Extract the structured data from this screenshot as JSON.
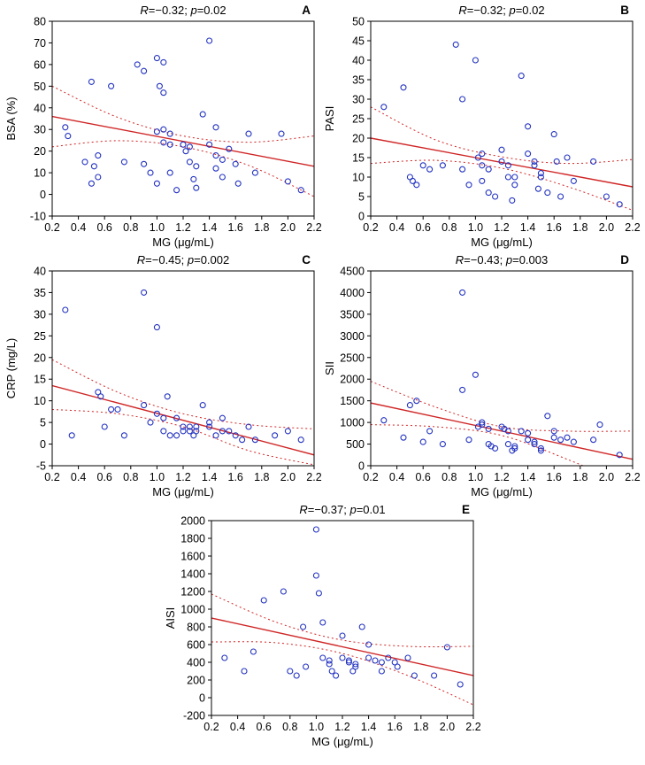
{
  "colors": {
    "point": "#2333c0",
    "fit": "#d02525",
    "ci": "#d02525",
    "frame": "#000000"
  },
  "chart_data": [
    {
      "panel_label": "A",
      "type": "scatter",
      "stats": {
        "r_label": "R",
        "r": "−0.32",
        "p_label": "p",
        "p": "0.02"
      },
      "xlabel": "MG (μg/mL)",
      "ylabel": "BSA (%)",
      "xlim": [
        0.2,
        2.2
      ],
      "ylim": [
        -10,
        80
      ],
      "xticks": [
        "0.2",
        "0.4",
        "0.6",
        "0.8",
        "1.0",
        "1.2",
        "1.4",
        "1.6",
        "1.8",
        "2.0",
        "2.2"
      ],
      "yticks": [
        "-10",
        "0",
        "10",
        "20",
        "30",
        "40",
        "50",
        "60",
        "70",
        "80"
      ],
      "points": [
        [
          0.3,
          31
        ],
        [
          0.32,
          27
        ],
        [
          0.45,
          15
        ],
        [
          0.5,
          52
        ],
        [
          0.52,
          13
        ],
        [
          0.55,
          18
        ],
        [
          0.55,
          8
        ],
        [
          0.5,
          5
        ],
        [
          0.65,
          50
        ],
        [
          0.75,
          15
        ],
        [
          0.85,
          60
        ],
        [
          0.9,
          57
        ],
        [
          0.9,
          14
        ],
        [
          0.95,
          10
        ],
        [
          1.0,
          63
        ],
        [
          1.05,
          61
        ],
        [
          1.02,
          50
        ],
        [
          1.05,
          47
        ],
        [
          1.0,
          29
        ],
        [
          1.05,
          30
        ],
        [
          1.1,
          28
        ],
        [
          1.05,
          24
        ],
        [
          1.1,
          23
        ],
        [
          1.0,
          5
        ],
        [
          1.1,
          10
        ],
        [
          1.15,
          2
        ],
        [
          1.2,
          23
        ],
        [
          1.22,
          20
        ],
        [
          1.25,
          22
        ],
        [
          1.25,
          15
        ],
        [
          1.28,
          7
        ],
        [
          1.3,
          13
        ],
        [
          1.3,
          3
        ],
        [
          1.4,
          71
        ],
        [
          1.35,
          37
        ],
        [
          1.45,
          31
        ],
        [
          1.4,
          23
        ],
        [
          1.45,
          18
        ],
        [
          1.45,
          12
        ],
        [
          1.5,
          16
        ],
        [
          1.5,
          8
        ],
        [
          1.55,
          21
        ],
        [
          1.6,
          14
        ],
        [
          1.62,
          5
        ],
        [
          1.7,
          28
        ],
        [
          1.75,
          10
        ],
        [
          1.95,
          28
        ],
        [
          2.0,
          6
        ],
        [
          2.1,
          2
        ]
      ],
      "fit": [
        [
          0.2,
          36
        ],
        [
          2.2,
          13
        ]
      ],
      "ci_upper": [
        [
          0.2,
          50
        ],
        [
          0.7,
          35.6
        ],
        [
          1.2,
          27
        ],
        [
          1.7,
          24.1
        ],
        [
          2.2,
          27
        ]
      ],
      "ci_lower": [
        [
          0.2,
          22
        ],
        [
          0.7,
          24.8
        ],
        [
          1.2,
          22
        ],
        [
          1.7,
          13.4
        ],
        [
          2.2,
          -1
        ]
      ]
    },
    {
      "panel_label": "B",
      "type": "scatter",
      "stats": {
        "r_label": "R",
        "r": "−0.32",
        "p_label": "p",
        "p": "0.02"
      },
      "xlabel": "MG (μg/mL)",
      "ylabel": "PASI",
      "xlim": [
        0.2,
        2.2
      ],
      "ylim": [
        0,
        50
      ],
      "xticks": [
        "0.2",
        "0.4",
        "0.6",
        "0.8",
        "1.0",
        "1.2",
        "1.4",
        "1.6",
        "1.8",
        "2.0",
        "2.2"
      ],
      "yticks": [
        "0",
        "5",
        "10",
        "15",
        "20",
        "25",
        "30",
        "35",
        "40",
        "45",
        "50"
      ],
      "points": [
        [
          0.3,
          28
        ],
        [
          0.45,
          33
        ],
        [
          0.5,
          10
        ],
        [
          0.52,
          9
        ],
        [
          0.55,
          8
        ],
        [
          0.6,
          13
        ],
        [
          0.65,
          12
        ],
        [
          0.75,
          13
        ],
        [
          0.85,
          44
        ],
        [
          0.9,
          30
        ],
        [
          0.9,
          12
        ],
        [
          0.95,
          8
        ],
        [
          1.0,
          40
        ],
        [
          1.05,
          16
        ],
        [
          1.02,
          15
        ],
        [
          1.05,
          13
        ],
        [
          1.1,
          12
        ],
        [
          1.05,
          9
        ],
        [
          1.1,
          6
        ],
        [
          1.15,
          5
        ],
        [
          1.2,
          17
        ],
        [
          1.2,
          14
        ],
        [
          1.25,
          13
        ],
        [
          1.25,
          10
        ],
        [
          1.3,
          10
        ],
        [
          1.3,
          8
        ],
        [
          1.28,
          4
        ],
        [
          1.35,
          36
        ],
        [
          1.4,
          23
        ],
        [
          1.4,
          16
        ],
        [
          1.45,
          14
        ],
        [
          1.45,
          13
        ],
        [
          1.5,
          11
        ],
        [
          1.5,
          10
        ],
        [
          1.48,
          7
        ],
        [
          1.55,
          6
        ],
        [
          1.6,
          21
        ],
        [
          1.62,
          14
        ],
        [
          1.65,
          5
        ],
        [
          1.7,
          15
        ],
        [
          1.75,
          9
        ],
        [
          1.9,
          14
        ],
        [
          2.0,
          5
        ],
        [
          2.1,
          3
        ]
      ],
      "fit": [
        [
          0.2,
          20
        ],
        [
          2.2,
          7.5
        ]
      ],
      "ci_upper": [
        [
          0.2,
          28
        ],
        [
          0.7,
          19.5
        ],
        [
          1.2,
          15.2
        ],
        [
          1.7,
          13.5
        ],
        [
          2.2,
          14.5
        ]
      ],
      "ci_lower": [
        [
          0.2,
          13.5
        ],
        [
          0.7,
          14.3
        ],
        [
          1.2,
          12.3
        ],
        [
          1.7,
          7.6
        ],
        [
          2.2,
          1.5
        ]
      ]
    },
    {
      "panel_label": "C",
      "type": "scatter",
      "stats": {
        "r_label": "R",
        "r": "−0.45",
        "p_label": "p",
        "p": "0.002"
      },
      "xlabel": "MG (μg/mL)",
      "ylabel": "CRP (mg/L)",
      "xlim": [
        0.2,
        2.2
      ],
      "ylim": [
        -5,
        40
      ],
      "xticks": [
        "0.2",
        "0.4",
        "0.6",
        "0.8",
        "1.0",
        "1.2",
        "1.4",
        "1.6",
        "1.8",
        "2.0",
        "2.2"
      ],
      "yticks": [
        "-5",
        "0",
        "5",
        "10",
        "15",
        "20",
        "25",
        "30",
        "35",
        "40"
      ],
      "points": [
        [
          0.3,
          31
        ],
        [
          0.35,
          2
        ],
        [
          0.55,
          12
        ],
        [
          0.57,
          11
        ],
        [
          0.6,
          4
        ],
        [
          0.65,
          8
        ],
        [
          0.7,
          8
        ],
        [
          0.75,
          2
        ],
        [
          0.9,
          35
        ],
        [
          0.9,
          9
        ],
        [
          0.95,
          5
        ],
        [
          1.0,
          27
        ],
        [
          1.0,
          7
        ],
        [
          1.05,
          6
        ],
        [
          1.05,
          3
        ],
        [
          1.08,
          11
        ],
        [
          1.1,
          2
        ],
        [
          1.15,
          6
        ],
        [
          1.15,
          2
        ],
        [
          1.2,
          4
        ],
        [
          1.2,
          3
        ],
        [
          1.25,
          4
        ],
        [
          1.25,
          3
        ],
        [
          1.28,
          2
        ],
        [
          1.3,
          4
        ],
        [
          1.3,
          3
        ],
        [
          1.35,
          9
        ],
        [
          1.4,
          5
        ],
        [
          1.4,
          4
        ],
        [
          1.45,
          2
        ],
        [
          1.5,
          6
        ],
        [
          1.5,
          3
        ],
        [
          1.55,
          3
        ],
        [
          1.6,
          2
        ],
        [
          1.65,
          1
        ],
        [
          1.7,
          4
        ],
        [
          1.75,
          1
        ],
        [
          1.9,
          2
        ],
        [
          2.0,
          3
        ],
        [
          2.1,
          1
        ]
      ],
      "fit": [
        [
          0.2,
          13.5
        ],
        [
          2.2,
          -2.5
        ]
      ],
      "ci_upper": [
        [
          0.2,
          19.5
        ],
        [
          0.7,
          12
        ],
        [
          1.2,
          7
        ],
        [
          1.7,
          4.5
        ],
        [
          2.2,
          3.5
        ]
      ],
      "ci_lower": [
        [
          0.2,
          8
        ],
        [
          0.7,
          7
        ],
        [
          1.2,
          4
        ],
        [
          1.7,
          -1.5
        ],
        [
          2.2,
          -4.8
        ]
      ]
    },
    {
      "panel_label": "D",
      "type": "scatter",
      "stats": {
        "r_label": "R",
        "r": "−0.43",
        "p_label": "p",
        "p": "0.003"
      },
      "xlabel": "MG (μg/mL)",
      "ylabel": "SII",
      "xlim": [
        0.2,
        2.2
      ],
      "ylim": [
        0,
        4500
      ],
      "xticks": [
        "0.2",
        "0.4",
        "0.6",
        "0.8",
        "1.0",
        "1.2",
        "1.4",
        "1.6",
        "1.8",
        "2.0",
        "2.2"
      ],
      "yticks": [
        "0",
        "500",
        "1000",
        "1500",
        "2000",
        "2500",
        "3000",
        "3500",
        "4000",
        "4500"
      ],
      "points": [
        [
          0.3,
          1050
        ],
        [
          0.45,
          650
        ],
        [
          0.5,
          1400
        ],
        [
          0.55,
          1500
        ],
        [
          0.6,
          550
        ],
        [
          0.65,
          800
        ],
        [
          0.75,
          500
        ],
        [
          0.9,
          4000
        ],
        [
          0.9,
          1750
        ],
        [
          0.95,
          600
        ],
        [
          1.0,
          2100
        ],
        [
          1.05,
          1000
        ],
        [
          1.05,
          950
        ],
        [
          1.02,
          900
        ],
        [
          1.1,
          850
        ],
        [
          1.1,
          500
        ],
        [
          1.12,
          450
        ],
        [
          1.15,
          400
        ],
        [
          1.2,
          900
        ],
        [
          1.22,
          850
        ],
        [
          1.25,
          800
        ],
        [
          1.25,
          500
        ],
        [
          1.28,
          350
        ],
        [
          1.3,
          450
        ],
        [
          1.3,
          400
        ],
        [
          1.35,
          800
        ],
        [
          1.4,
          750
        ],
        [
          1.4,
          600
        ],
        [
          1.45,
          550
        ],
        [
          1.45,
          500
        ],
        [
          1.5,
          400
        ],
        [
          1.5,
          350
        ],
        [
          1.55,
          1150
        ],
        [
          1.6,
          800
        ],
        [
          1.6,
          650
        ],
        [
          1.65,
          600
        ],
        [
          1.7,
          650
        ],
        [
          1.75,
          550
        ],
        [
          1.9,
          600
        ],
        [
          1.95,
          950
        ],
        [
          2.1,
          250
        ]
      ],
      "fit": [
        [
          0.2,
          1450
        ],
        [
          2.2,
          150
        ]
      ],
      "ci_upper": [
        [
          0.2,
          1950
        ],
        [
          0.7,
          1350
        ],
        [
          1.2,
          900
        ],
        [
          1.7,
          800
        ],
        [
          2.2,
          800
        ]
      ],
      "ci_lower": [
        [
          0.2,
          950
        ],
        [
          0.7,
          900
        ],
        [
          1.2,
          700
        ],
        [
          1.7,
          150
        ],
        [
          2.2,
          -500
        ]
      ]
    },
    {
      "panel_label": "E",
      "type": "scatter",
      "stats": {
        "r_label": "R",
        "r": "−0.37",
        "p_label": "p",
        "p": "0.01"
      },
      "xlabel": "MG (μg/mL)",
      "ylabel": "AISI",
      "xlim": [
        0.2,
        2.2
      ],
      "ylim": [
        -200,
        2000
      ],
      "xticks": [
        "0.2",
        "0.4",
        "0.6",
        "0.8",
        "1.0",
        "1.2",
        "1.4",
        "1.6",
        "1.8",
        "2.0",
        "2.2"
      ],
      "yticks": [
        "-200",
        "0",
        "200",
        "400",
        "600",
        "800",
        "1000",
        "1200",
        "1400",
        "1600",
        "1800",
        "2000"
      ],
      "points": [
        [
          0.3,
          450
        ],
        [
          0.45,
          300
        ],
        [
          0.52,
          520
        ],
        [
          0.6,
          1100
        ],
        [
          0.75,
          1200
        ],
        [
          0.8,
          300
        ],
        [
          0.85,
          250
        ],
        [
          0.9,
          800
        ],
        [
          0.92,
          350
        ],
        [
          1.0,
          1900
        ],
        [
          1.0,
          1380
        ],
        [
          1.02,
          1180
        ],
        [
          1.05,
          850
        ],
        [
          1.05,
          450
        ],
        [
          1.1,
          420
        ],
        [
          1.1,
          380
        ],
        [
          1.12,
          300
        ],
        [
          1.15,
          250
        ],
        [
          1.2,
          700
        ],
        [
          1.2,
          450
        ],
        [
          1.25,
          420
        ],
        [
          1.25,
          400
        ],
        [
          1.28,
          300
        ],
        [
          1.3,
          380
        ],
        [
          1.3,
          350
        ],
        [
          1.35,
          800
        ],
        [
          1.4,
          600
        ],
        [
          1.4,
          450
        ],
        [
          1.45,
          420
        ],
        [
          1.5,
          400
        ],
        [
          1.5,
          300
        ],
        [
          1.55,
          450
        ],
        [
          1.6,
          400
        ],
        [
          1.62,
          350
        ],
        [
          1.7,
          450
        ],
        [
          1.75,
          250
        ],
        [
          1.9,
          250
        ],
        [
          2.0,
          570
        ],
        [
          2.1,
          150
        ]
      ],
      "fit": [
        [
          0.2,
          900
        ],
        [
          2.2,
          250
        ]
      ],
      "ci_upper": [
        [
          0.2,
          1170
        ],
        [
          0.7,
          850
        ],
        [
          1.2,
          650
        ],
        [
          1.7,
          580
        ],
        [
          2.2,
          580
        ]
      ],
      "ci_lower": [
        [
          0.2,
          630
        ],
        [
          0.7,
          620
        ],
        [
          1.2,
          500
        ],
        [
          1.7,
          250
        ],
        [
          2.2,
          -80
        ]
      ]
    }
  ]
}
